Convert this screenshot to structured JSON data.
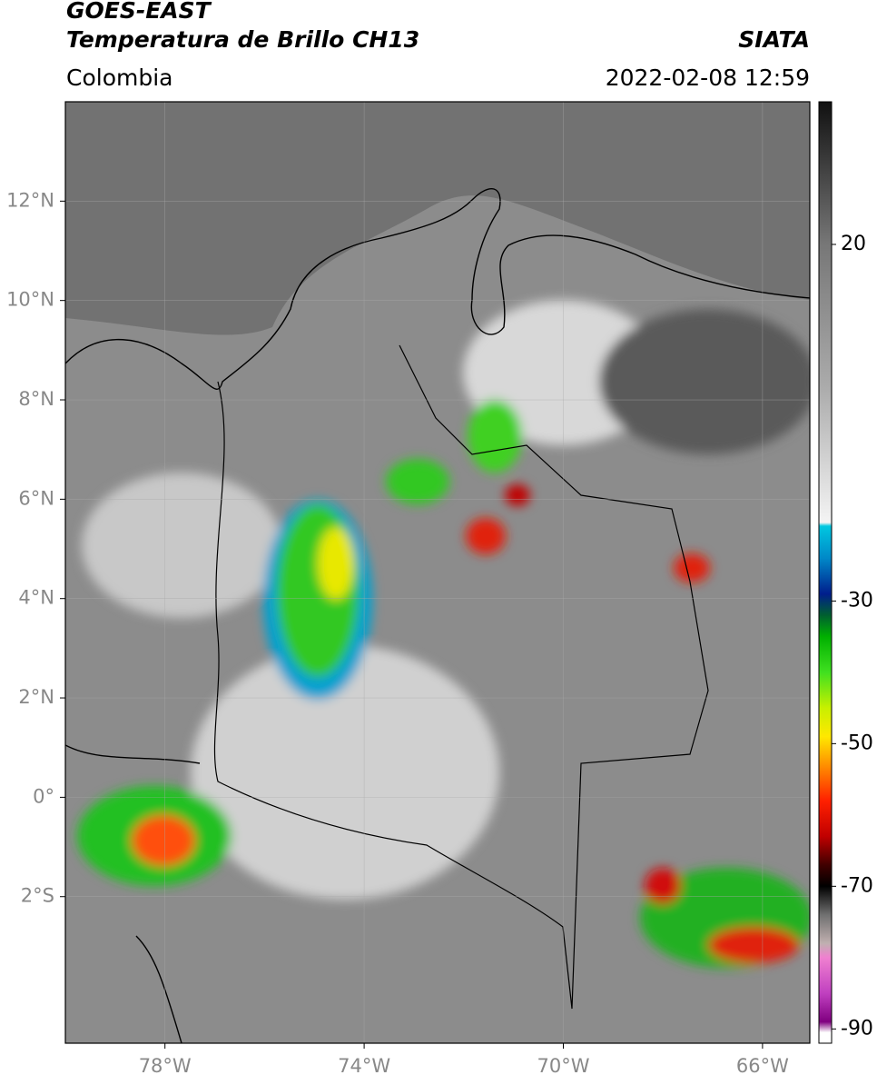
{
  "header": {
    "title": "GOES-EAST",
    "subtitle": "Temperatura de Brillo CH13",
    "source": "SIATA",
    "region": "Colombia",
    "timestamp": "2022-02-08 12:59"
  },
  "map": {
    "lonlim": [
      -80,
      -65.05
    ],
    "latlim": [
      -4.95,
      14
    ],
    "lon_ticks": [
      {
        "value": -78,
        "label": "78°W"
      },
      {
        "value": -74,
        "label": "74°W"
      },
      {
        "value": -70,
        "label": "70°W"
      },
      {
        "value": -66,
        "label": "66°W"
      }
    ],
    "lat_ticks": [
      {
        "value": 12,
        "label": "12°N"
      },
      {
        "value": 10,
        "label": "10°N"
      },
      {
        "value": 8,
        "label": "8°N"
      },
      {
        "value": 6,
        "label": "6°N"
      },
      {
        "value": 4,
        "label": "4°N"
      },
      {
        "value": 2,
        "label": "2°N"
      },
      {
        "value": 0,
        "label": "0°"
      },
      {
        "value": -2,
        "label": "2°S"
      }
    ]
  },
  "colorbar": {
    "lim": [
      -92,
      40
    ],
    "ticks": [
      20,
      -30,
      -50,
      -70,
      -90
    ],
    "colormap": [
      {
        "value": 40,
        "color": "#111111"
      },
      {
        "value": 20,
        "color": "#777777"
      },
      {
        "value": 0,
        "color": "#ababab"
      },
      {
        "value": -19,
        "color": "#f4f4f4"
      },
      {
        "value": -19.5,
        "color": "#00c8e0"
      },
      {
        "value": -24,
        "color": "#0088c8"
      },
      {
        "value": -29,
        "color": "#001e8c"
      },
      {
        "value": -32,
        "color": "#006030"
      },
      {
        "value": -35,
        "color": "#00b000"
      },
      {
        "value": -40,
        "color": "#40e020"
      },
      {
        "value": -45,
        "color": "#c8f000"
      },
      {
        "value": -49,
        "color": "#ffe800"
      },
      {
        "value": -53,
        "color": "#ff9000"
      },
      {
        "value": -58,
        "color": "#ff2000"
      },
      {
        "value": -63,
        "color": "#c00000"
      },
      {
        "value": -67,
        "color": "#400000"
      },
      {
        "value": -70,
        "color": "#000000"
      },
      {
        "value": -74,
        "color": "#707070"
      },
      {
        "value": -78,
        "color": "#c0b0b0"
      },
      {
        "value": -80,
        "color": "#f080d0"
      },
      {
        "value": -85,
        "color": "#c040c0"
      },
      {
        "value": -89,
        "color": "#800080"
      },
      {
        "value": -90.5,
        "color": "#ffffff"
      },
      {
        "value": -92,
        "color": "#ffffff"
      }
    ]
  }
}
